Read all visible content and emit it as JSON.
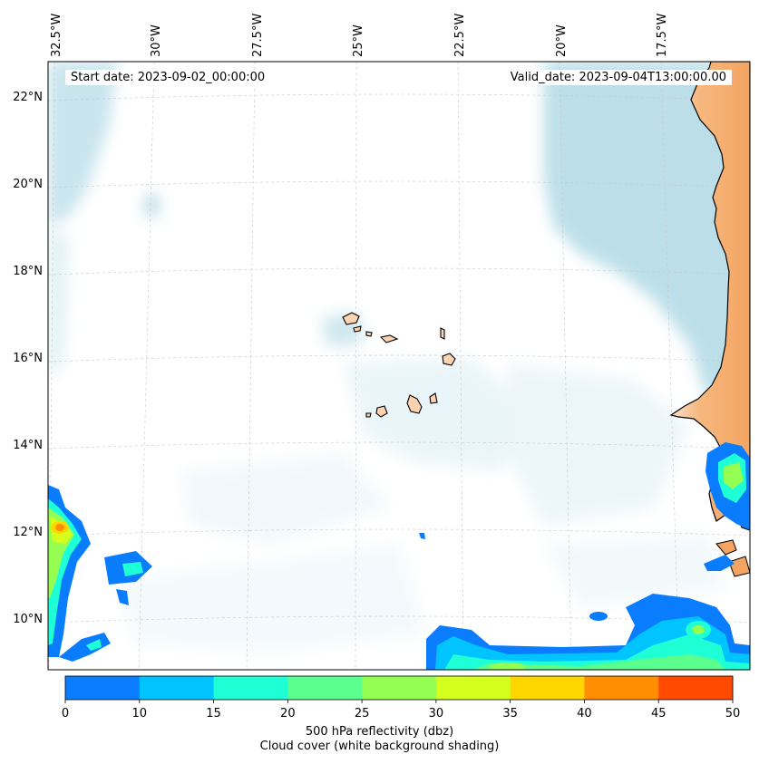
{
  "map": {
    "start_date_text": "Start date: 2023-09-02_00:00:00",
    "valid_date_text": "Valid_date: 2023-09-04T13:00:00.00",
    "lon_ticks": [
      "32.5°W",
      "30°W",
      "27.5°W",
      "25°W",
      "22.5°W",
      "20°W",
      "17.5°W"
    ],
    "lat_ticks": [
      "22°N",
      "20°N",
      "18°N",
      "16°N",
      "14°N",
      "12°N",
      "10°N"
    ],
    "extent": {
      "lon_west": -33.0,
      "lon_east": -15.5,
      "lat_south": 8.8,
      "lat_north": 22.8
    }
  },
  "colorbar": {
    "ticks": [
      "0",
      "10",
      "15",
      "20",
      "25",
      "30",
      "35",
      "40",
      "45",
      "50"
    ],
    "colors": [
      "#0a7dff",
      "#00c4ff",
      "#1effd6",
      "#5bff8e",
      "#94ff52",
      "#d4ff1e",
      "#ffd600",
      "#ff8f00",
      "#ff4a00"
    ],
    "label_line1": "500 hPa reflectivity (dbz)",
    "label_line2": "Cloud cover (white background shading)"
  },
  "colors": {
    "land": "#f4a460",
    "island": "#fcd2b0",
    "cloud": "#b9dde8",
    "ocean": "#ffffff"
  }
}
